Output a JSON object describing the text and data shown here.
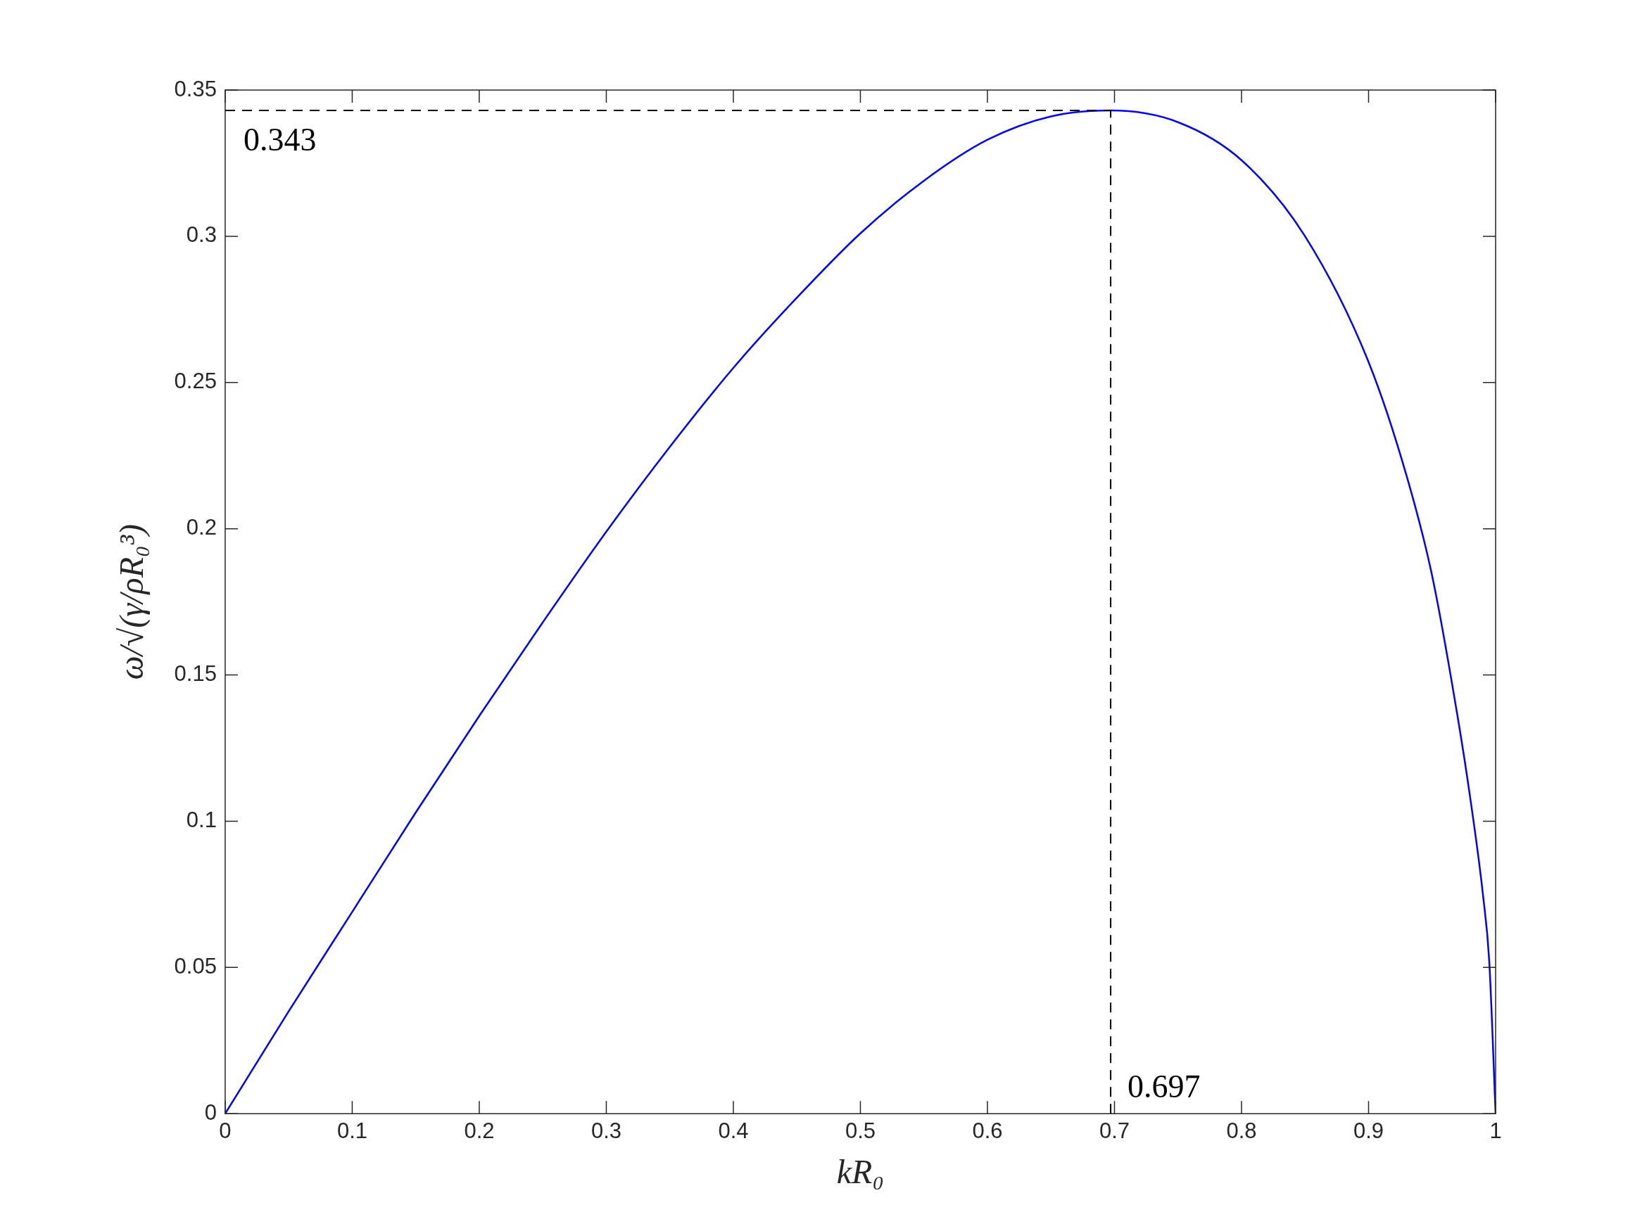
{
  "chart_data": {
    "type": "line",
    "xlabel": "kR₀",
    "ylabel": "ω/√(γ/ρR₀³)",
    "series": [
      {
        "color": "#0000ff",
        "x": [
          0,
          0.05,
          0.1,
          0.15,
          0.2,
          0.25,
          0.3,
          0.35,
          0.4,
          0.45,
          0.5,
          0.55,
          0.6,
          0.65,
          0.697,
          0.75,
          0.8,
          0.85,
          0.9,
          0.93,
          0.95,
          0.97,
          0.98,
          0.99,
          0.995,
          1
        ],
        "values": [
          0,
          0.035,
          0.069,
          0.103,
          0.136,
          0.168,
          0.199,
          0.228,
          0.255,
          0.279,
          0.301,
          0.319,
          0.333,
          0.341,
          0.343,
          0.339,
          0.326,
          0.3,
          0.257,
          0.218,
          0.184,
          0.136,
          0.108,
          0.075,
          0.052,
          0
        ]
      }
    ],
    "xlim": [
      0,
      1
    ],
    "xticks": [
      0,
      0.1,
      0.2,
      0.3,
      0.4,
      0.5,
      0.6,
      0.7,
      0.8,
      0.9,
      1
    ],
    "ylim": [
      0,
      0.35
    ],
    "yticks": [
      0,
      0.05,
      0.1,
      0.15,
      0.2,
      0.25,
      0.3,
      0.35
    ],
    "ref_lines": [
      {
        "axis": "y",
        "value": 0.343,
        "label": "0.343",
        "color": "#000000",
        "line_style": "dashed"
      },
      {
        "axis": "x",
        "value": 0.697,
        "label": "0.697",
        "color": "#000000",
        "line_style": "dashed"
      }
    ],
    "grid": false,
    "legend": false,
    "marker": "none",
    "line_style": "solid"
  }
}
